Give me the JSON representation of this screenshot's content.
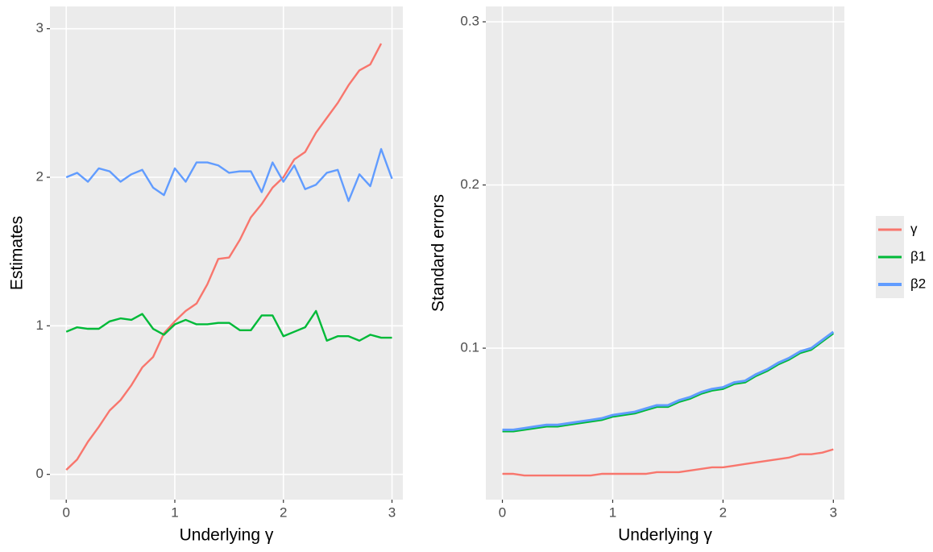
{
  "chart_data": [
    {
      "type": "line",
      "x_label": "Underlying γ",
      "y_label": "Estimates",
      "x": [
        0,
        0.1,
        0.2,
        0.3,
        0.4,
        0.5,
        0.6,
        0.7,
        0.8,
        0.9,
        1.0,
        1.1,
        1.2,
        1.3,
        1.4,
        1.5,
        1.6,
        1.7,
        1.8,
        1.9,
        2.0,
        2.1,
        2.2,
        2.3,
        2.4,
        2.5,
        2.6,
        2.7,
        2.8,
        2.9,
        3.0
      ],
      "series": [
        {
          "color": "#F8766D",
          "values": [
            0.03,
            0.1,
            0.22,
            0.32,
            0.43,
            0.5,
            0.6,
            0.72,
            0.79,
            0.95,
            1.03,
            1.1,
            1.15,
            1.28,
            1.45,
            1.46,
            1.58,
            1.73,
            1.82,
            1.93,
            2.0,
            2.12,
            2.17,
            2.3,
            2.4,
            2.5,
            2.62,
            2.72,
            2.76,
            2.9,
            null
          ]
        },
        {
          "color": "#00BA38",
          "values": [
            0.96,
            0.99,
            0.98,
            0.98,
            1.03,
            1.05,
            1.04,
            1.08,
            0.98,
            0.94,
            1.01,
            1.04,
            1.01,
            1.01,
            1.02,
            1.02,
            0.97,
            0.97,
            1.07,
            1.07,
            0.93,
            0.96,
            0.99,
            1.1,
            0.9,
            0.93,
            0.93,
            0.9,
            0.94,
            0.92,
            0.92
          ]
        },
        {
          "color": "#619CFF",
          "values": [
            2.0,
            2.03,
            1.97,
            2.06,
            2.04,
            1.97,
            2.02,
            2.05,
            1.93,
            1.88,
            2.06,
            1.97,
            2.1,
            2.1,
            2.08,
            2.03,
            2.04,
            2.04,
            1.9,
            2.1,
            1.97,
            2.08,
            1.92,
            1.95,
            2.03,
            2.05,
            1.84,
            2.02,
            1.94,
            2.19,
            1.99
          ]
        }
      ],
      "xlim": [
        -0.15,
        3.1
      ],
      "xticks": [
        0,
        1,
        2,
        3
      ],
      "ylim": [
        -0.17,
        3.15
      ],
      "yticks": [
        0,
        1,
        2,
        3
      ],
      "grid": true
    },
    {
      "type": "line",
      "x_label": "Underlying γ",
      "y_label": "Standard errors",
      "x": [
        0,
        0.1,
        0.2,
        0.3,
        0.4,
        0.5,
        0.6,
        0.7,
        0.8,
        0.9,
        1.0,
        1.1,
        1.2,
        1.3,
        1.4,
        1.5,
        1.6,
        1.7,
        1.8,
        1.9,
        2.0,
        2.1,
        2.2,
        2.3,
        2.4,
        2.5,
        2.6,
        2.7,
        2.8,
        2.9,
        3.0
      ],
      "series": [
        {
          "name": "γ",
          "color": "#F8766D",
          "values": [
            0.023,
            0.023,
            0.022,
            0.022,
            0.022,
            0.022,
            0.022,
            0.022,
            0.022,
            0.023,
            0.023,
            0.023,
            0.023,
            0.023,
            0.024,
            0.024,
            0.024,
            0.025,
            0.026,
            0.027,
            0.027,
            0.028,
            0.029,
            0.03,
            0.031,
            0.032,
            0.033,
            0.035,
            0.035,
            0.036,
            0.038
          ]
        },
        {
          "name": "β1",
          "color": "#00BA38",
          "values": [
            0.049,
            0.049,
            0.05,
            0.051,
            0.052,
            0.052,
            0.053,
            0.054,
            0.055,
            0.056,
            0.058,
            0.059,
            0.06,
            0.062,
            0.064,
            0.064,
            0.067,
            0.069,
            0.072,
            0.074,
            0.075,
            0.078,
            0.079,
            0.083,
            0.086,
            0.09,
            0.093,
            0.097,
            0.099,
            0.104,
            0.109
          ]
        },
        {
          "name": "β2",
          "color": "#619CFF",
          "values": [
            0.05,
            0.05,
            0.051,
            0.052,
            0.053,
            0.053,
            0.054,
            0.055,
            0.056,
            0.057,
            0.059,
            0.06,
            0.061,
            0.063,
            0.065,
            0.065,
            0.068,
            0.07,
            0.073,
            0.075,
            0.076,
            0.079,
            0.08,
            0.084,
            0.087,
            0.091,
            0.094,
            0.098,
            0.1,
            0.105,
            0.11
          ]
        }
      ],
      "xlim": [
        -0.15,
        3.1
      ],
      "xticks": [
        0,
        1,
        2,
        3
      ],
      "ylim": [
        0.0072,
        0.3094
      ],
      "yticks": [
        0.1,
        0.2,
        0.3
      ],
      "grid": true,
      "legend": "right"
    }
  ]
}
